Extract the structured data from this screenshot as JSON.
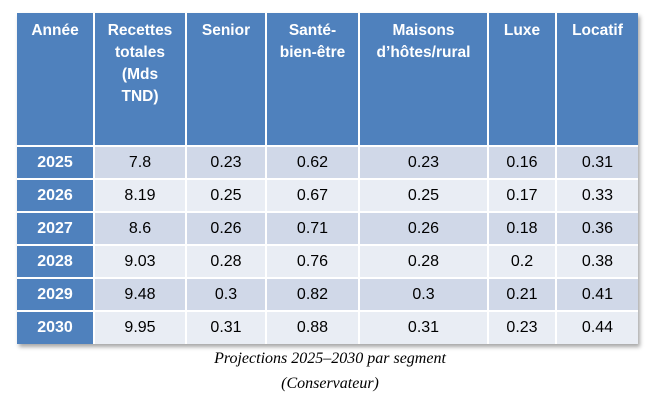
{
  "chart_data": {
    "type": "table",
    "title": "Projections 2025–2030 par segment",
    "subtitle": "(Conservateur)",
    "columns": [
      "Année",
      "Recettes totales (Mds TND)",
      "Senior",
      "Santé-bien-être",
      "Maisons d’hôtes/rural",
      "Luxe",
      "Locatif"
    ],
    "header_lines": [
      [
        "Année"
      ],
      [
        "Recettes",
        "totales",
        "(Mds",
        "TND)"
      ],
      [
        "Senior"
      ],
      [
        "Santé-",
        "bien-être"
      ],
      [
        "Maisons",
        "d’hôtes/rural"
      ],
      [
        "Luxe"
      ],
      [
        "Locatif"
      ]
    ],
    "rows": [
      [
        "2025",
        "7.8",
        "0.23",
        "0.62",
        "0.23",
        "0.16",
        "0.31"
      ],
      [
        "2026",
        "8.19",
        "0.25",
        "0.67",
        "0.25",
        "0.17",
        "0.33"
      ],
      [
        "2027",
        "8.6",
        "0.26",
        "0.71",
        "0.26",
        "0.18",
        "0.36"
      ],
      [
        "2028",
        "9.03",
        "0.28",
        "0.76",
        "0.28",
        "0.2",
        "0.38"
      ],
      [
        "2029",
        "9.48",
        "0.3",
        "0.82",
        "0.3",
        "0.21",
        "0.41"
      ],
      [
        "2030",
        "9.95",
        "0.31",
        "0.88",
        "0.31",
        "0.23",
        "0.44"
      ]
    ]
  },
  "colors": {
    "header_bg": "#4f81bd",
    "header_text": "#ffffff",
    "row_band_1": "#d0d8e8",
    "row_band_2": "#e9edf4"
  }
}
